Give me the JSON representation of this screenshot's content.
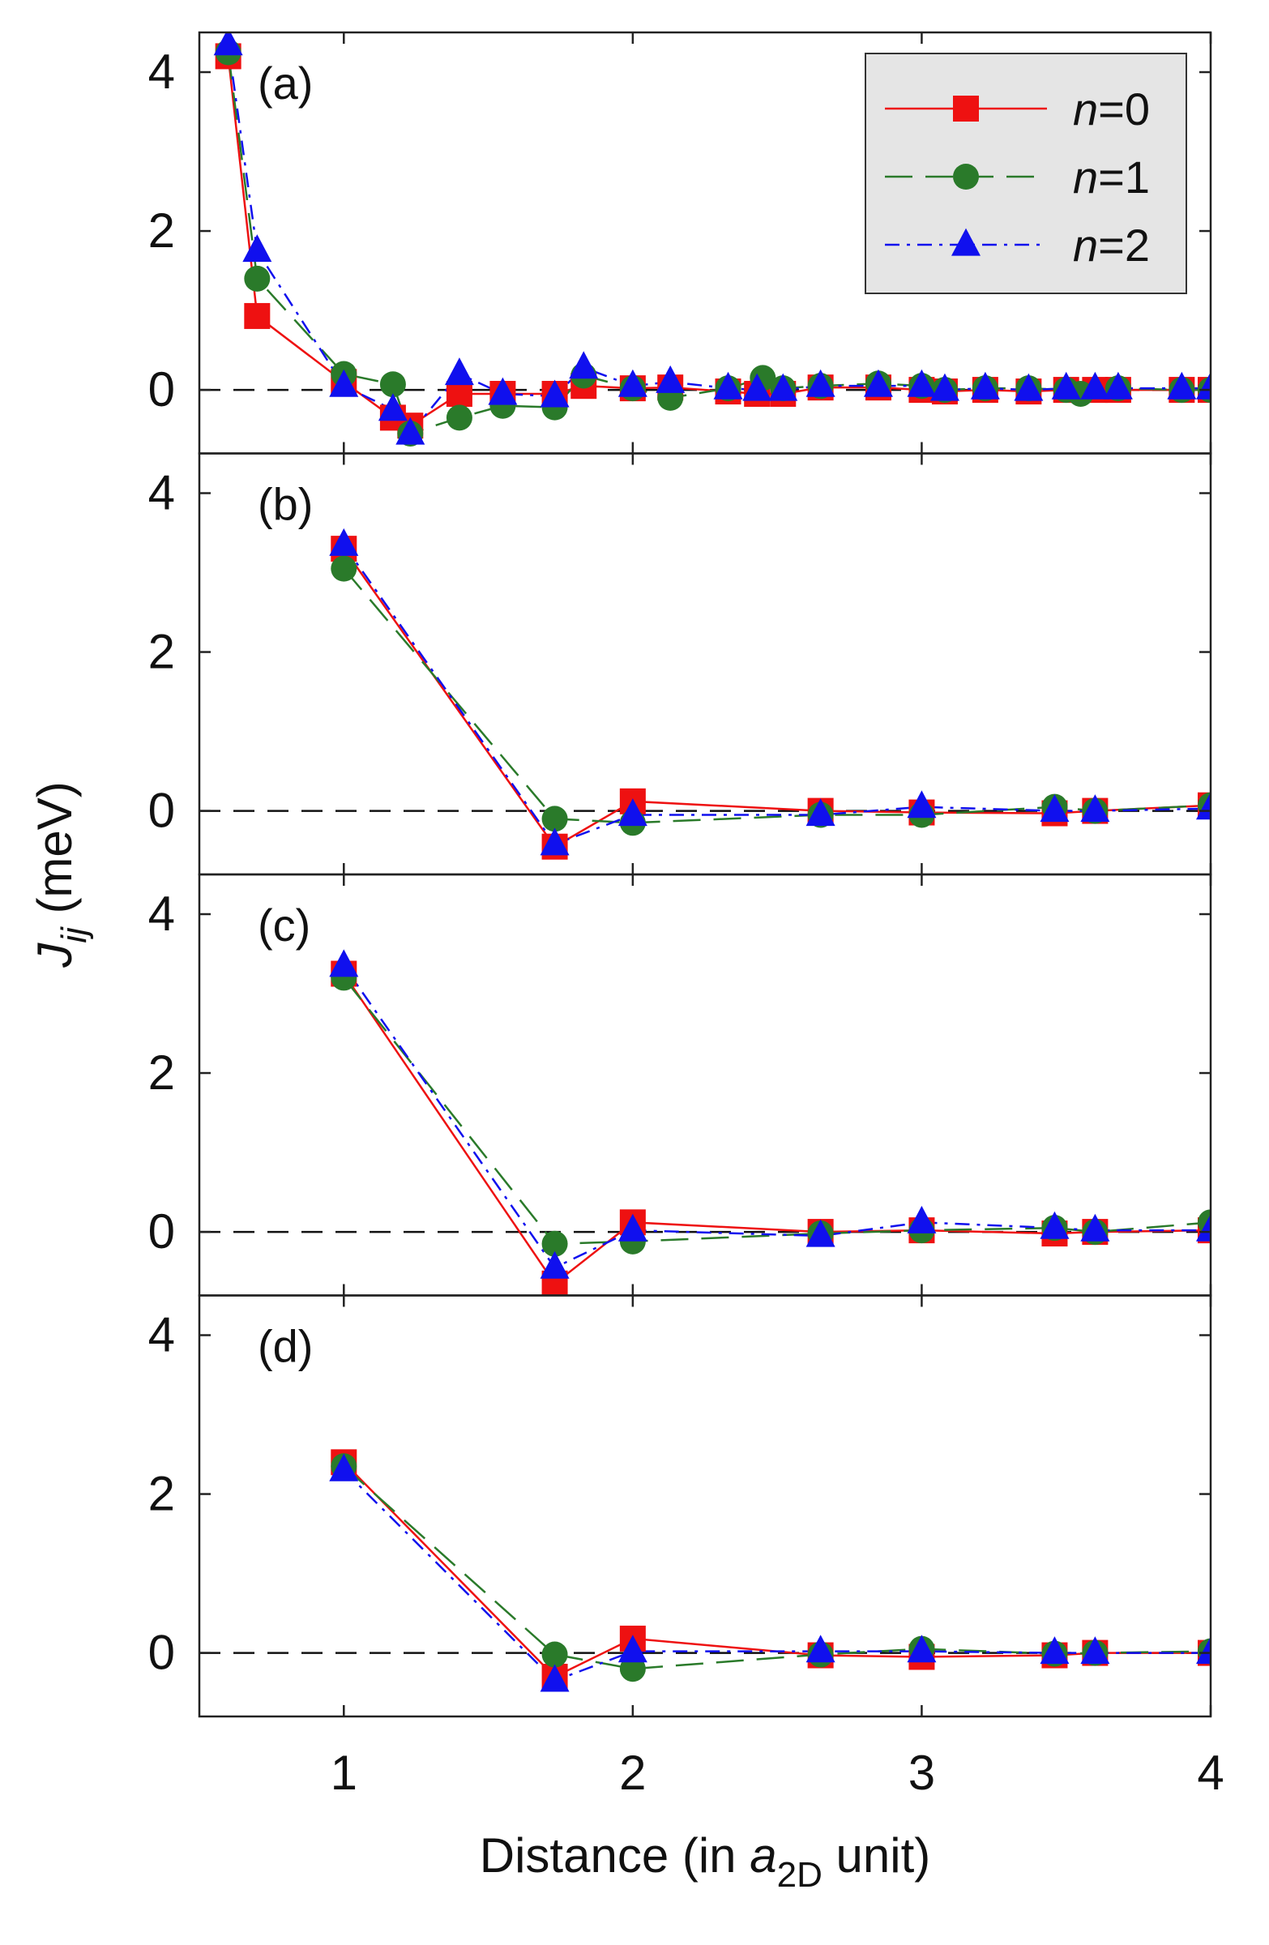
{
  "chart_data": {
    "type": "line",
    "figure": {
      "xlabel": "Distance (in a2D unit)",
      "xlabel_parts": {
        "prefix": "Distance (in ",
        "var": "a",
        "sub": "2D",
        "suffix": " unit)"
      },
      "ylabel": "Jij (meV)",
      "ylabel_parts": {
        "var": "J",
        "sub": "ij",
        "suffix": " (meV)"
      },
      "xlim": [
        0.5,
        4.0
      ],
      "xticks": [
        1,
        2,
        3,
        4
      ],
      "xtick_labels": [
        "1",
        "2",
        "3",
        "4"
      ],
      "legend": {
        "position": "top-right of panel (a)",
        "entries": [
          {
            "label": "n=0",
            "var": "n",
            "rest": "=0",
            "color": "#ee1111",
            "marker": "square",
            "dash": "solid"
          },
          {
            "label": "n=1",
            "var": "n",
            "rest": "=1",
            "color": "#2a7a2a",
            "marker": "circle",
            "dash": "dashed"
          },
          {
            "label": "n=2",
            "var": "n",
            "rest": "=2",
            "color": "#1010ee",
            "marker": "triangle",
            "dash": "dashdot"
          }
        ]
      },
      "reference_line": {
        "y": 0,
        "style": "dashed",
        "color": "#111111"
      }
    },
    "panels": [
      {
        "label": "(a)",
        "ylim": [
          -0.8,
          4.5
        ],
        "yticks": [
          0,
          2,
          4
        ],
        "ytick_labels": [
          "0",
          "2",
          "4"
        ],
        "series": [
          {
            "name": "n=0",
            "x": [
              0.6,
              0.7,
              1.0,
              1.17,
              1.23,
              1.4,
              1.55,
              1.73,
              1.83,
              2.0,
              2.13,
              2.33,
              2.43,
              2.52,
              2.65,
              2.85,
              3.0,
              3.08,
              3.22,
              3.37,
              3.5,
              3.6,
              3.68,
              3.9,
              4.0
            ],
            "y": [
              4.2,
              0.93,
              0.1,
              -0.35,
              -0.45,
              -0.05,
              -0.05,
              -0.05,
              0.05,
              0.02,
              0.03,
              -0.02,
              -0.05,
              -0.05,
              0.03,
              0.03,
              0.0,
              -0.02,
              0.0,
              -0.02,
              0.0,
              0.0,
              0.0,
              0.0,
              0.0
            ]
          },
          {
            "name": "n=1",
            "x": [
              0.6,
              0.7,
              1.0,
              1.17,
              1.23,
              1.4,
              1.55,
              1.73,
              1.83,
              2.0,
              2.13,
              2.33,
              2.45,
              2.52,
              2.65,
              2.85,
              3.0,
              3.08,
              3.22,
              3.37,
              3.5,
              3.55,
              3.68,
              3.9,
              4.0
            ],
            "y": [
              4.25,
              1.4,
              0.2,
              0.07,
              -0.55,
              -0.35,
              -0.2,
              -0.22,
              0.18,
              0.02,
              -0.1,
              0.02,
              0.15,
              0.02,
              0.05,
              0.08,
              0.05,
              0.0,
              0.02,
              0.02,
              0.0,
              -0.05,
              0.02,
              0.0,
              0.0
            ]
          },
          {
            "name": "n=2",
            "x": [
              0.6,
              0.7,
              1.0,
              1.17,
              1.23,
              1.4,
              1.55,
              1.73,
              1.83,
              2.0,
              2.13,
              2.33,
              2.43,
              2.52,
              2.65,
              2.85,
              3.0,
              3.08,
              3.22,
              3.37,
              3.5,
              3.6,
              3.68,
              3.9,
              4.0
            ],
            "y": [
              4.35,
              1.75,
              0.05,
              -0.25,
              -0.55,
              0.2,
              -0.05,
              -0.08,
              0.28,
              0.05,
              0.1,
              0.02,
              0.0,
              0.0,
              0.05,
              0.05,
              0.05,
              0.0,
              0.02,
              0.0,
              0.02,
              0.02,
              0.02,
              0.02,
              0.02
            ]
          }
        ]
      },
      {
        "label": "(b)",
        "ylim": [
          -0.8,
          4.5
        ],
        "yticks": [
          0,
          2,
          4
        ],
        "ytick_labels": [
          "0",
          "2",
          "4"
        ],
        "series": [
          {
            "name": "n=0",
            "x": [
              1.0,
              1.73,
              2.0,
              2.65,
              3.0,
              3.46,
              3.6,
              4.0
            ],
            "y": [
              3.3,
              -0.45,
              0.12,
              0.0,
              -0.02,
              -0.03,
              0.0,
              0.07
            ]
          },
          {
            "name": "n=1",
            "x": [
              1.0,
              1.73,
              2.0,
              2.65,
              3.0,
              3.46,
              3.6,
              4.0
            ],
            "y": [
              3.05,
              -0.1,
              -0.15,
              -0.05,
              -0.05,
              0.05,
              0.0,
              0.07
            ]
          },
          {
            "name": "n=2",
            "x": [
              1.0,
              1.73,
              2.0,
              2.65,
              3.0,
              3.46,
              3.6,
              4.0
            ],
            "y": [
              3.35,
              -0.42,
              -0.05,
              -0.05,
              0.05,
              0.0,
              0.0,
              0.03
            ]
          }
        ]
      },
      {
        "label": "(c)",
        "ylim": [
          -0.8,
          4.5
        ],
        "yticks": [
          0,
          2,
          4
        ],
        "ytick_labels": [
          "0",
          "2",
          "4"
        ],
        "series": [
          {
            "name": "n=0",
            "x": [
              1.0,
              1.73,
              2.0,
              2.65,
              3.0,
              3.46,
              3.6,
              4.0
            ],
            "y": [
              3.25,
              -0.65,
              0.12,
              0.0,
              0.02,
              -0.02,
              0.0,
              0.02
            ]
          },
          {
            "name": "n=1",
            "x": [
              1.0,
              1.73,
              2.0,
              2.65,
              3.0,
              3.46,
              3.6,
              4.0
            ],
            "y": [
              3.2,
              -0.15,
              -0.12,
              -0.02,
              0.02,
              0.05,
              0.0,
              0.12
            ]
          },
          {
            "name": "n=2",
            "x": [
              1.0,
              1.73,
              2.0,
              2.65,
              3.0,
              3.46,
              3.6,
              4.0
            ],
            "y": [
              3.35,
              -0.45,
              0.02,
              -0.05,
              0.12,
              0.05,
              0.02,
              0.02
            ]
          }
        ]
      },
      {
        "label": "(d)",
        "ylim": [
          -0.8,
          4.5
        ],
        "yticks": [
          0,
          2,
          4
        ],
        "ytick_labels": [
          "0",
          "2",
          "4"
        ],
        "series": [
          {
            "name": "n=0",
            "x": [
              1.0,
              1.73,
              2.0,
              2.65,
              3.0,
              3.46,
              3.6,
              4.0
            ],
            "y": [
              2.4,
              -0.3,
              0.18,
              -0.03,
              -0.05,
              -0.03,
              0.0,
              0.0
            ]
          },
          {
            "name": "n=1",
            "x": [
              1.0,
              1.73,
              2.0,
              2.65,
              3.0,
              3.46,
              3.6,
              4.0
            ],
            "y": [
              2.35,
              -0.02,
              -0.2,
              -0.02,
              0.05,
              -0.01,
              0.0,
              0.02
            ]
          },
          {
            "name": "n=2",
            "x": [
              1.0,
              1.73,
              2.0,
              2.65,
              3.0,
              3.46,
              3.6,
              4.0
            ],
            "y": [
              2.3,
              -0.35,
              0.02,
              0.02,
              0.02,
              0.0,
              0.0,
              0.0
            ]
          }
        ]
      }
    ]
  }
}
